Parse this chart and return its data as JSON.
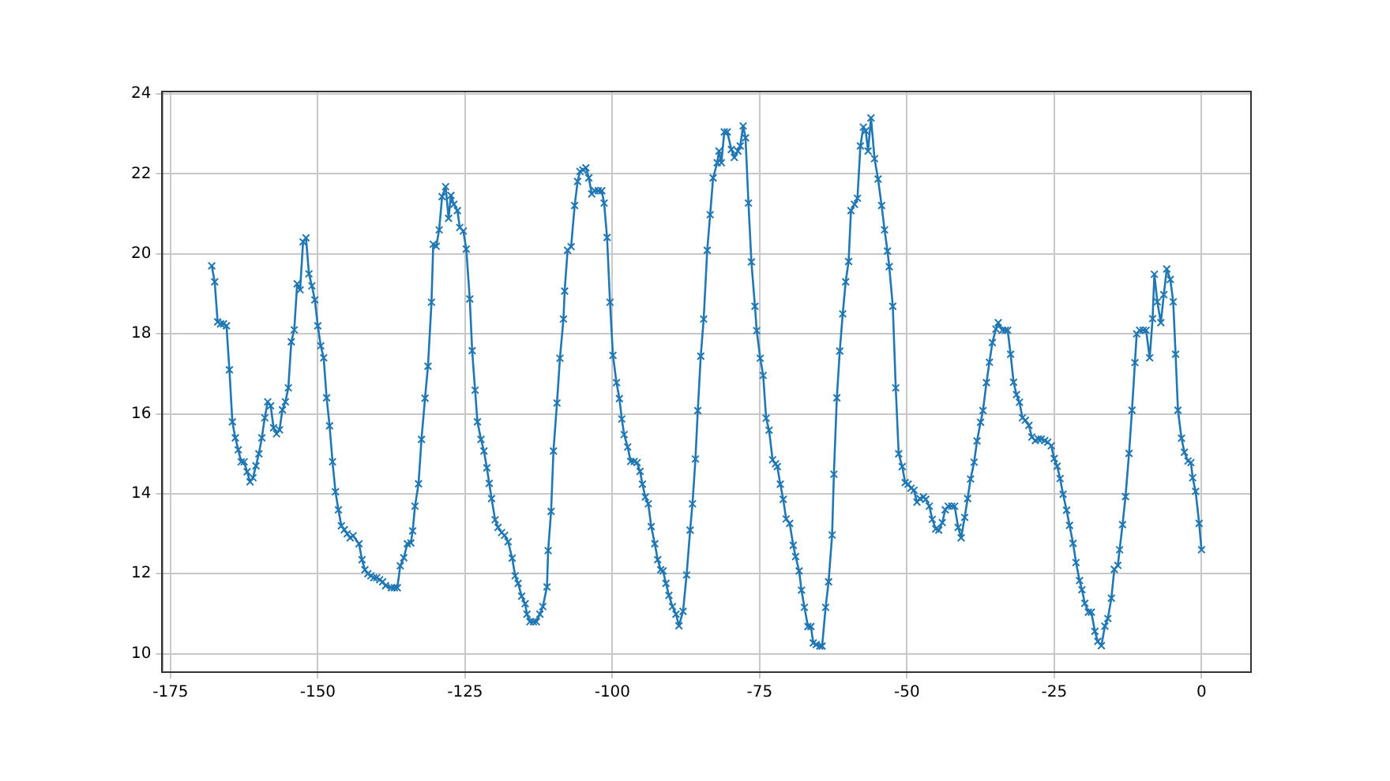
{
  "chart_data": {
    "type": "line",
    "marker": "cross",
    "grid": true,
    "xlim": [
      -176.4,
      8.4
    ],
    "ylim": [
      9.54,
      24.06
    ],
    "xticks": [
      -175,
      -150,
      -125,
      -100,
      -75,
      -50,
      -25,
      0
    ],
    "yticks": [
      10,
      12,
      14,
      16,
      18,
      20,
      22,
      24
    ],
    "series": [
      {
        "color": "#1f77b4",
        "x": [
          -168,
          -167.5,
          -167,
          -166.5,
          -166,
          -165.5,
          -165,
          -164.5,
          -164,
          -163.5,
          -163,
          -162.5,
          -162,
          -161.5,
          -161,
          -160.5,
          -160,
          -159.5,
          -159,
          -158.5,
          -158,
          -157.5,
          -157,
          -156.5,
          -156,
          -155.5,
          -155,
          -154.5,
          -154,
          -153.5,
          -153,
          -152.5,
          -152,
          -151.5,
          -151,
          -150.5,
          -150,
          -149.5,
          -149,
          -148.5,
          -148,
          -147.5,
          -147,
          -146.5,
          -146,
          -145.5,
          -145,
          -144.5,
          -144,
          -143,
          -142.5,
          -142,
          -141.5,
          -141,
          -140.5,
          -140,
          -139.5,
          -139,
          -138.5,
          -137.5,
          -137,
          -136.5,
          -136,
          -135.4,
          -134.8,
          -134.2,
          -133.9,
          -133.5,
          -132.9,
          -132.4,
          -131.8,
          -131.3,
          -130.7,
          -130.4,
          -129.9,
          -129.4,
          -128.9,
          -128.3,
          -127.8,
          -127.4,
          -126.9,
          -126.3,
          -125.9,
          -125.3,
          -124.8,
          -124.2,
          -123.8,
          -123.3,
          -122.9,
          -122.3,
          -121.8,
          -121.3,
          -120.9,
          -120.5,
          -119.9,
          -119.4,
          -118.8,
          -118.3,
          -117.7,
          -117,
          -116.5,
          -116,
          -115.4,
          -114.8,
          -114.5,
          -114,
          -113.4,
          -112.9,
          -112.3,
          -111.8,
          -111.1,
          -110.9,
          -110.4,
          -110,
          -109.4,
          -108.9,
          -108.3,
          -108.1,
          -107.6,
          -107,
          -106.4,
          -105.9,
          -105.5,
          -105,
          -104.5,
          -104,
          -103.5,
          -103,
          -102.4,
          -101.8,
          -101.4,
          -100.9,
          -100.4,
          -99.9,
          -99.3,
          -98.8,
          -98.4,
          -98,
          -97.4,
          -96.9,
          -96.3,
          -95.8,
          -95.3,
          -94.9,
          -94.4,
          -93.9,
          -93.4,
          -92.8,
          -92.3,
          -91.8,
          -91.4,
          -90.9,
          -90.4,
          -89.8,
          -89.2,
          -88.7,
          -88,
          -87.4,
          -86.8,
          -86.4,
          -85.9,
          -85.5,
          -85,
          -84.5,
          -83.9,
          -83.4,
          -82.9,
          -82.2,
          -81.9,
          -81.5,
          -81,
          -80.5,
          -79.8,
          -79.3,
          -78.7,
          -78.3,
          -77.8,
          -77.4,
          -76.9,
          -76.4,
          -75.8,
          -75.5,
          -74.9,
          -74.4,
          -73.9,
          -73.4,
          -72.8,
          -72.3,
          -72,
          -71.5,
          -71,
          -70.5,
          -69.9,
          -69.3,
          -68.9,
          -68.3,
          -67.9,
          -67.4,
          -66.8,
          -66.3,
          -65.9,
          -65.4,
          -64.8,
          -64.4,
          -63.8,
          -63.3,
          -62.7,
          -62.4,
          -61.9,
          -61.4,
          -60.9,
          -60.4,
          -59.9,
          -59.5,
          -58.9,
          -58.4,
          -57.9,
          -57.4,
          -57,
          -56.6,
          -56.1,
          -55.5,
          -54.9,
          -54.3,
          -53.8,
          -53.3,
          -53,
          -52.4,
          -51.9,
          -51.4,
          -50.8,
          -50.3,
          -49.8,
          -49.3,
          -48.8,
          -48.3,
          -47.8,
          -47.2,
          -46.8,
          -46.2,
          -45.7,
          -45.1,
          -44.6,
          -44,
          -43.5,
          -43,
          -42.4,
          -41.9,
          -41.3,
          -40.8,
          -40.2,
          -39.7,
          -39.2,
          -38.6,
          -38.1,
          -37.5,
          -37.1,
          -36.5,
          -36,
          -35.5,
          -34.9,
          -34.5,
          -33.8,
          -33.3,
          -32.9,
          -32.4,
          -31.9,
          -31.4,
          -30.9,
          -30.4,
          -29.9,
          -29.3,
          -28.8,
          -28.2,
          -27.7,
          -27.2,
          -26.6,
          -26.1,
          -25.5,
          -25,
          -24.5,
          -24,
          -23.5,
          -22.9,
          -22.4,
          -21.8,
          -21.3,
          -20.7,
          -20.3,
          -19.8,
          -19.2,
          -18.7,
          -18.1,
          -17.6,
          -17,
          -16.4,
          -15.9,
          -15.3,
          -14.8,
          -14.2,
          -13.9,
          -13.4,
          -12.9,
          -12.3,
          -11.8,
          -11.3,
          -11,
          -10.5,
          -9.9,
          -9.4,
          -8.8,
          -8.3,
          -8,
          -7.5,
          -6.9,
          -6.4,
          -5.9,
          -5.3,
          -4.8,
          -4.4,
          -4,
          -3.4,
          -2.9,
          -2.3,
          -1.8,
          -1.5,
          -1,
          -0.4,
          0
        ],
        "values": [
          19.7,
          19.3,
          18.3,
          18.25,
          18.25,
          18.2,
          17.1,
          15.8,
          15.4,
          15.1,
          14.8,
          14.8,
          14.55,
          14.3,
          14.4,
          14.7,
          15.0,
          15.4,
          15.9,
          16.3,
          16.2,
          15.65,
          15.5,
          15.6,
          16.1,
          16.3,
          16.65,
          17.8,
          18.1,
          19.25,
          19.1,
          20.3,
          20.4,
          19.5,
          19.2,
          18.85,
          18.2,
          17.7,
          17.4,
          16.4,
          15.7,
          14.8,
          14.05,
          13.6,
          13.2,
          13.1,
          13.0,
          12.9,
          12.95,
          12.75,
          12.35,
          12.1,
          12.0,
          11.95,
          11.9,
          11.9,
          11.85,
          11.8,
          11.7,
          11.65,
          11.65,
          11.65,
          12.2,
          12.4,
          12.75,
          12.77,
          13.07,
          13.69,
          14.25,
          15.36,
          16.39,
          17.19,
          18.79,
          20.24,
          20.19,
          20.6,
          21.43,
          21.68,
          20.89,
          21.46,
          21.24,
          21.08,
          20.66,
          20.57,
          20.12,
          18.87,
          17.58,
          16.59,
          15.8,
          15.36,
          15.07,
          14.65,
          14.26,
          13.88,
          13.35,
          13.16,
          13.03,
          12.96,
          12.8,
          12.39,
          11.95,
          11.76,
          11.44,
          11.25,
          10.99,
          10.8,
          10.8,
          10.8,
          10.99,
          11.18,
          11.67,
          12.58,
          13.56,
          15.07,
          16.27,
          17.39,
          18.37,
          19.07,
          20.09,
          20.18,
          21.21,
          21.81,
          22.06,
          22.1,
          22.15,
          21.9,
          21.5,
          21.58,
          21.58,
          21.58,
          21.27,
          20.41,
          18.79,
          17.46,
          16.78,
          16.38,
          15.87,
          15.48,
          15.17,
          14.81,
          14.81,
          14.78,
          14.56,
          14.24,
          13.92,
          13.75,
          13.18,
          12.75,
          12.35,
          12.1,
          12.07,
          11.76,
          11.46,
          11.18,
          10.99,
          10.7,
          11.06,
          11.97,
          13.09,
          13.75,
          14.87,
          16.08,
          17.44,
          18.37,
          20.09,
          20.98,
          21.9,
          22.28,
          22.57,
          22.28,
          23.05,
          23.05,
          22.61,
          22.41,
          22.57,
          22.7,
          23.2,
          22.9,
          21.27,
          19.8,
          18.69,
          18.08,
          17.39,
          16.96,
          15.89,
          15.59,
          14.85,
          14.75,
          14.68,
          14.24,
          13.86,
          13.37,
          13.26,
          12.71,
          12.43,
          12.07,
          11.59,
          11.16,
          10.68,
          10.68,
          10.27,
          10.23,
          10.19,
          10.19,
          11.16,
          11.8,
          12.97,
          14.49,
          16.4,
          17.57,
          18.5,
          19.3,
          19.81,
          21.08,
          21.24,
          21.39,
          22.7,
          23.17,
          23.08,
          22.57,
          23.4,
          22.38,
          21.87,
          21.21,
          20.6,
          20.07,
          19.68,
          18.69,
          16.65,
          15.0,
          14.68,
          14.28,
          14.24,
          14.14,
          14.09,
          13.79,
          13.88,
          13.92,
          13.86,
          13.69,
          13.36,
          13.12,
          13.09,
          13.28,
          13.6,
          13.69,
          13.69,
          13.69,
          13.16,
          12.9,
          13.41,
          13.88,
          14.37,
          14.79,
          15.32,
          15.79,
          16.08,
          16.78,
          17.29,
          17.78,
          18.12,
          18.28,
          18.09,
          18.09,
          18.09,
          17.49,
          16.79,
          16.48,
          16.29,
          15.9,
          15.84,
          15.71,
          15.42,
          15.33,
          15.37,
          15.37,
          15.33,
          15.29,
          15.2,
          14.88,
          14.69,
          14.38,
          13.99,
          13.59,
          13.21,
          12.76,
          12.28,
          11.83,
          11.6,
          11.26,
          11.04,
          11.04,
          10.56,
          10.31,
          10.2,
          10.69,
          10.88,
          11.39,
          12.11,
          12.21,
          12.6,
          13.23,
          13.93,
          15.01,
          16.09,
          17.28,
          18.0,
          18.09,
          18.09,
          18.09,
          17.4,
          18.38,
          19.49,
          18.8,
          18.28,
          18.98,
          19.62,
          19.36,
          18.8,
          17.49,
          16.09,
          15.39,
          15.04,
          14.82,
          14.78,
          14.4,
          14.06,
          13.26,
          12.6
        ]
      }
    ]
  }
}
